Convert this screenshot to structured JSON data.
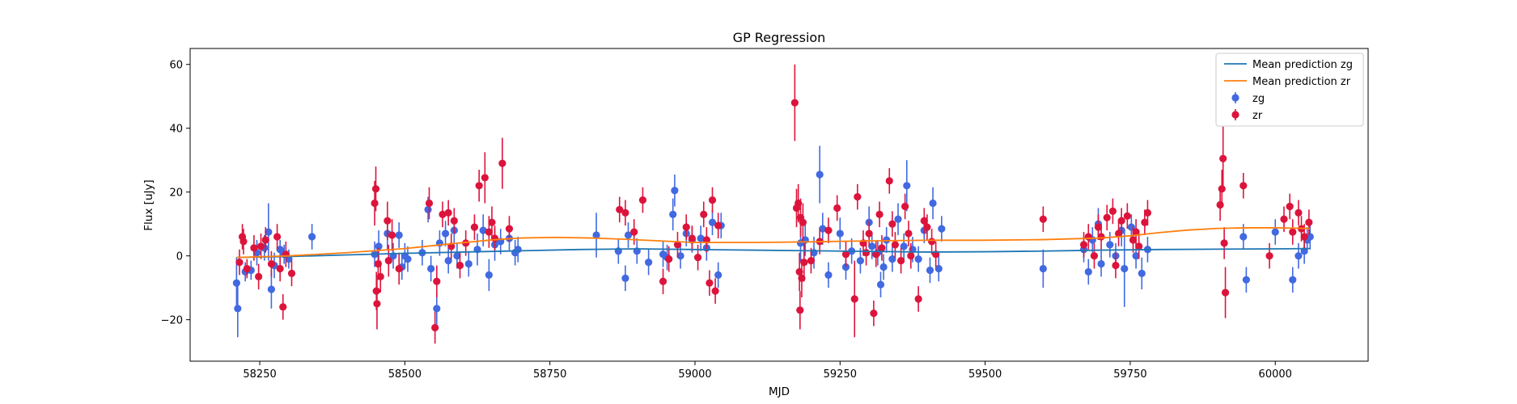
{
  "chart_data": {
    "type": "scatter",
    "title": "GP Regression",
    "xlabel": "MJD",
    "ylabel": "Flux [uJy]",
    "xlim": [
      58130,
      60160
    ],
    "ylim": [
      -33,
      65
    ],
    "xticks": [
      58250,
      58500,
      58750,
      59000,
      59250,
      59500,
      59750,
      60000
    ],
    "yticks": [
      -20,
      0,
      20,
      40,
      60
    ],
    "legend_position": "top-right",
    "grid": false,
    "series": [
      {
        "name": "Mean prediction zg",
        "kind": "line",
        "color": "#1f77b4",
        "x": [
          58210,
          58300,
          58400,
          58500,
          58600,
          58700,
          58800,
          58900,
          59000,
          59100,
          59200,
          59300,
          59400,
          59500,
          59600,
          59700,
          59800,
          59900,
          60000,
          60060
        ],
        "y": [
          -0.5,
          -0.2,
          0.3,
          0.8,
          1.2,
          1.6,
          2.0,
          2.2,
          2.0,
          1.8,
          1.6,
          1.4,
          1.2,
          1.3,
          1.5,
          1.8,
          2.0,
          2.1,
          2.2,
          2.3
        ]
      },
      {
        "name": "Mean prediction zr",
        "kind": "line",
        "color": "#ff7f0e",
        "x": [
          58210,
          58300,
          58400,
          58500,
          58580,
          58650,
          58700,
          58760,
          58820,
          58880,
          58950,
          59000,
          59100,
          59200,
          59300,
          59400,
          59500,
          59600,
          59700,
          59750,
          59800,
          59850,
          59900,
          59950,
          60000,
          60060
        ],
        "y": [
          -0.5,
          0.0,
          1.0,
          2.3,
          3.8,
          5.0,
          5.6,
          5.8,
          5.6,
          5.2,
          4.6,
          4.2,
          4.2,
          4.4,
          4.7,
          4.9,
          4.9,
          5.1,
          5.6,
          6.3,
          7.3,
          8.1,
          8.6,
          8.8,
          8.8,
          8.6
        ]
      },
      {
        "name": "zg",
        "kind": "errorbar",
        "color": "#4169e1",
        "points": [
          [
            58210,
            -8.5,
            8
          ],
          [
            58212,
            -16.5,
            9
          ],
          [
            58225,
            -5.0,
            3
          ],
          [
            58235,
            -4.5,
            3
          ],
          [
            58245,
            1.0,
            4
          ],
          [
            58258,
            2.5,
            4
          ],
          [
            58265,
            7.5,
            9
          ],
          [
            58270,
            -10.5,
            6
          ],
          [
            58275,
            -3.0,
            4
          ],
          [
            58285,
            2.0,
            3
          ],
          [
            58292,
            0.5,
            3
          ],
          [
            58300,
            -1.0,
            3
          ],
          [
            58340,
            6.0,
            4
          ],
          [
            58448,
            0.5,
            4
          ],
          [
            58455,
            3.0,
            5
          ],
          [
            58470,
            7.0,
            5
          ],
          [
            58480,
            0.0,
            4
          ],
          [
            58490,
            6.5,
            4
          ],
          [
            58495,
            -3.5,
            4
          ],
          [
            58500,
            0.0,
            4
          ],
          [
            58505,
            -1.0,
            4
          ],
          [
            58530,
            1.0,
            4
          ],
          [
            58540,
            14.5,
            4
          ],
          [
            58545,
            -4.0,
            4
          ],
          [
            58555,
            -16.5,
            5
          ],
          [
            58560,
            4.0,
            4
          ],
          [
            58570,
            7.0,
            4
          ],
          [
            58575,
            -1.5,
            4
          ],
          [
            58585,
            8.0,
            4
          ],
          [
            58590,
            0.0,
            4
          ],
          [
            58610,
            -2.5,
            4
          ],
          [
            58625,
            2.0,
            5
          ],
          [
            58635,
            8.0,
            5
          ],
          [
            58645,
            -6.0,
            5
          ],
          [
            58655,
            3.5,
            5
          ],
          [
            58665,
            4.5,
            4
          ],
          [
            58680,
            5.5,
            4
          ],
          [
            58690,
            1.0,
            4
          ],
          [
            58695,
            2.0,
            4
          ],
          [
            58830,
            6.5,
            7
          ],
          [
            58868,
            1.5,
            4
          ],
          [
            58880,
            -7.0,
            4
          ],
          [
            58885,
            6.5,
            4
          ],
          [
            58900,
            1.5,
            4
          ],
          [
            58920,
            -2.0,
            4
          ],
          [
            58945,
            0.5,
            4
          ],
          [
            58952,
            -0.5,
            4
          ],
          [
            58962,
            13.0,
            5
          ],
          [
            58965,
            20.5,
            5
          ],
          [
            58975,
            0.0,
            4
          ],
          [
            58985,
            7.0,
            4
          ],
          [
            58995,
            5.0,
            4
          ],
          [
            59010,
            5.5,
            4
          ],
          [
            59020,
            2.5,
            4
          ],
          [
            59030,
            10.5,
            4
          ],
          [
            59040,
            -6.0,
            4
          ],
          [
            59045,
            9.5,
            4
          ],
          [
            59182,
            4.0,
            6
          ],
          [
            59190,
            5.0,
            5
          ],
          [
            59205,
            1.0,
            5
          ],
          [
            59215,
            25.5,
            9
          ],
          [
            59220,
            8.5,
            5
          ],
          [
            59230,
            -6.0,
            4
          ],
          [
            59250,
            7.0,
            5
          ],
          [
            59260,
            -3.5,
            4
          ],
          [
            59270,
            1.5,
            4
          ],
          [
            59285,
            -1.5,
            4
          ],
          [
            59300,
            10.5,
            5
          ],
          [
            59305,
            3.0,
            4
          ],
          [
            59315,
            1.0,
            4
          ],
          [
            59320,
            -9.0,
            4
          ],
          [
            59325,
            -3.5,
            4
          ],
          [
            59330,
            5.0,
            4
          ],
          [
            59340,
            -1.0,
            4
          ],
          [
            59350,
            11.5,
            5
          ],
          [
            59360,
            3.0,
            4
          ],
          [
            59365,
            22.0,
            8
          ],
          [
            59375,
            2.0,
            4
          ],
          [
            59385,
            -1.0,
            4
          ],
          [
            59395,
            8.0,
            4
          ],
          [
            59405,
            -4.5,
            4
          ],
          [
            59410,
            16.5,
            5
          ],
          [
            59420,
            -4.0,
            4
          ],
          [
            59425,
            8.5,
            4
          ],
          [
            59600,
            -4.0,
            6
          ],
          [
            59670,
            2.0,
            4
          ],
          [
            59678,
            -5.0,
            4
          ],
          [
            59685,
            5.0,
            4
          ],
          [
            59695,
            10.0,
            5
          ],
          [
            59700,
            -2.5,
            4
          ],
          [
            59715,
            3.5,
            4
          ],
          [
            59725,
            0.0,
            4
          ],
          [
            59735,
            8.0,
            5
          ],
          [
            59740,
            -4.0,
            12
          ],
          [
            59752,
            9.0,
            4
          ],
          [
            59760,
            0.0,
            4
          ],
          [
            59770,
            -5.5,
            5
          ],
          [
            59780,
            2.0,
            4
          ],
          [
            59945,
            6.0,
            4
          ],
          [
            59950,
            -7.5,
            4
          ],
          [
            60000,
            7.5,
            4
          ],
          [
            60030,
            -7.5,
            4
          ],
          [
            60040,
            0.0,
            4
          ],
          [
            60050,
            1.5,
            4
          ],
          [
            60055,
            5.0,
            4
          ],
          [
            60060,
            6.0,
            4
          ]
        ]
      },
      {
        "name": "zr",
        "kind": "errorbar",
        "color": "#dc143c",
        "points": [
          [
            58215,
            -2.0,
            4
          ],
          [
            58220,
            6.0,
            4
          ],
          [
            58222,
            4.5,
            4
          ],
          [
            58228,
            -4.0,
            3
          ],
          [
            58240,
            2.5,
            4
          ],
          [
            58248,
            -6.5,
            4
          ],
          [
            58252,
            3.0,
            4
          ],
          [
            58260,
            5.0,
            4
          ],
          [
            58270,
            -2.5,
            4
          ],
          [
            58280,
            6.0,
            4
          ],
          [
            58285,
            -4.0,
            4
          ],
          [
            58290,
            -16.0,
            4
          ],
          [
            58295,
            0.5,
            4
          ],
          [
            58305,
            -5.5,
            4
          ],
          [
            58448,
            16.5,
            7
          ],
          [
            58450,
            21.0,
            7
          ],
          [
            58451,
            -11.0,
            6
          ],
          [
            58452,
            -15.0,
            8
          ],
          [
            58454,
            -2.5,
            5
          ],
          [
            58458,
            -6.5,
            5
          ],
          [
            58470,
            11.0,
            6
          ],
          [
            58472,
            -1.5,
            5
          ],
          [
            58478,
            6.5,
            5
          ],
          [
            58490,
            -4.0,
            5
          ],
          [
            58542,
            16.5,
            5
          ],
          [
            58552,
            -22.5,
            5
          ],
          [
            58555,
            -8.0,
            5
          ],
          [
            58565,
            13.0,
            4
          ],
          [
            58575,
            13.5,
            4
          ],
          [
            58580,
            3.0,
            4
          ],
          [
            58585,
            11.0,
            4
          ],
          [
            58595,
            -3.0,
            4
          ],
          [
            58605,
            4.0,
            4
          ],
          [
            58620,
            9.0,
            4
          ],
          [
            58628,
            22.0,
            5
          ],
          [
            58638,
            24.5,
            8
          ],
          [
            58645,
            7.5,
            5
          ],
          [
            58650,
            10.5,
            5
          ],
          [
            58655,
            5.5,
            4
          ],
          [
            58668,
            29.0,
            8
          ],
          [
            58680,
            8.5,
            4
          ],
          [
            58870,
            14.5,
            4
          ],
          [
            58880,
            13.5,
            4
          ],
          [
            58895,
            7.5,
            4
          ],
          [
            58910,
            17.5,
            4
          ],
          [
            58945,
            -8.0,
            4
          ],
          [
            58955,
            -1.0,
            4
          ],
          [
            58970,
            3.5,
            4
          ],
          [
            58985,
            9.0,
            4
          ],
          [
            58995,
            5.5,
            4
          ],
          [
            59005,
            -0.5,
            4
          ],
          [
            59015,
            13.0,
            4
          ],
          [
            59020,
            5.0,
            4
          ],
          [
            59025,
            -8.5,
            4
          ],
          [
            59030,
            17.5,
            4
          ],
          [
            59035,
            -11.0,
            4
          ],
          [
            59040,
            9.5,
            4
          ],
          [
            59172,
            48.0,
            12
          ],
          [
            59175,
            15.0,
            6
          ],
          [
            59178,
            16.5,
            6
          ],
          [
            59180,
            -5.0,
            6
          ],
          [
            59181,
            -17.0,
            6
          ],
          [
            59182,
            12.0,
            6
          ],
          [
            59184,
            -7.0,
            6
          ],
          [
            59186,
            10.5,
            6
          ],
          [
            59188,
            -2.0,
            6
          ],
          [
            59200,
            -1.5,
            4
          ],
          [
            59215,
            4.5,
            4
          ],
          [
            59230,
            8.0,
            4
          ],
          [
            59245,
            15.0,
            4
          ],
          [
            59260,
            0.5,
            4
          ],
          [
            59275,
            -13.5,
            12
          ],
          [
            59280,
            18.5,
            4
          ],
          [
            59290,
            4.0,
            4
          ],
          [
            59295,
            1.0,
            4
          ],
          [
            59300,
            7.0,
            4
          ],
          [
            59308,
            -18.0,
            4
          ],
          [
            59312,
            0.5,
            4
          ],
          [
            59318,
            13.0,
            4
          ],
          [
            59322,
            2.5,
            4
          ],
          [
            59335,
            23.5,
            4
          ],
          [
            59340,
            10.0,
            4
          ],
          [
            59345,
            3.5,
            4
          ],
          [
            59355,
            -1.5,
            4
          ],
          [
            59362,
            15.5,
            4
          ],
          [
            59368,
            7.0,
            4
          ],
          [
            59372,
            0.0,
            4
          ],
          [
            59385,
            -13.5,
            4
          ],
          [
            59395,
            11.0,
            4
          ],
          [
            59400,
            9.0,
            4
          ],
          [
            59408,
            4.5,
            4
          ],
          [
            59415,
            0.5,
            4
          ],
          [
            59600,
            11.5,
            4
          ],
          [
            59670,
            3.5,
            4
          ],
          [
            59678,
            6.0,
            4
          ],
          [
            59688,
            0.0,
            4
          ],
          [
            59695,
            9.0,
            4
          ],
          [
            59700,
            6.0,
            4
          ],
          [
            59710,
            12.0,
            4
          ],
          [
            59720,
            14.0,
            4
          ],
          [
            59725,
            -3.0,
            4
          ],
          [
            59730,
            7.0,
            4
          ],
          [
            59735,
            11.0,
            4
          ],
          [
            59745,
            12.5,
            4
          ],
          [
            59755,
            5.0,
            4
          ],
          [
            59760,
            7.5,
            4
          ],
          [
            59765,
            3.0,
            4
          ],
          [
            59775,
            10.5,
            4
          ],
          [
            59780,
            13.5,
            4
          ],
          [
            59905,
            16.0,
            5
          ],
          [
            59908,
            21.0,
            6
          ],
          [
            59910,
            30.5,
            10
          ],
          [
            59912,
            4.0,
            5
          ],
          [
            59914,
            -11.5,
            8
          ],
          [
            59945,
            22.0,
            4
          ],
          [
            59990,
            0.0,
            4
          ],
          [
            60015,
            11.5,
            4
          ],
          [
            60025,
            15.5,
            4
          ],
          [
            60030,
            7.5,
            4
          ],
          [
            60040,
            13.5,
            4
          ],
          [
            60045,
            8.5,
            4
          ],
          [
            60050,
            6.0,
            4
          ],
          [
            60058,
            10.5,
            4
          ]
        ]
      }
    ]
  }
}
